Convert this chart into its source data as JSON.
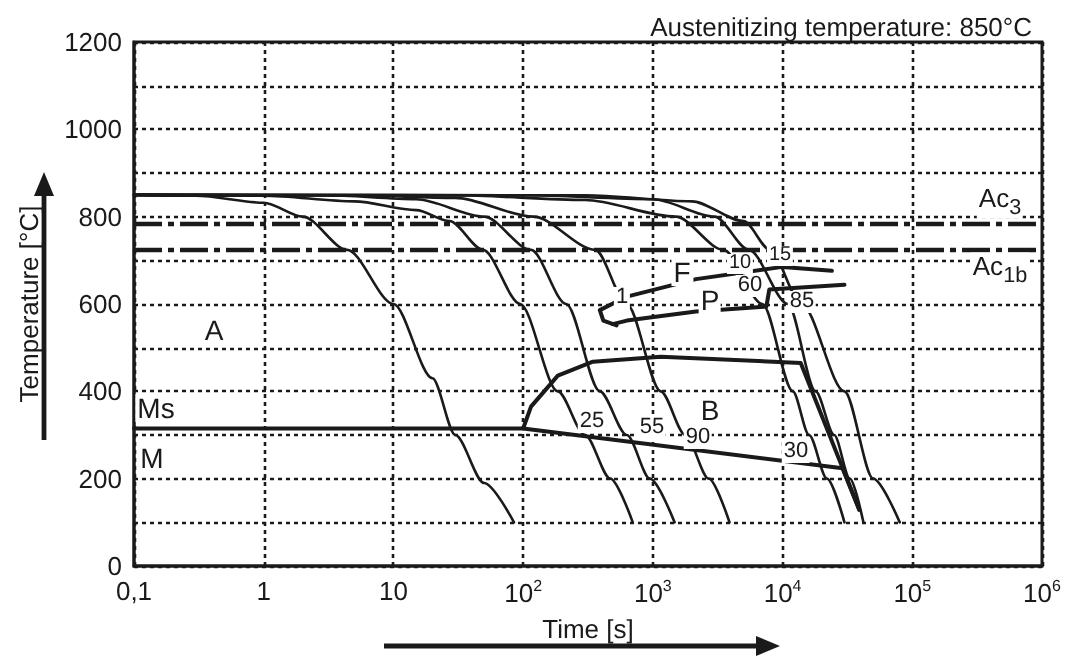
{
  "chart_data": {
    "type": "line",
    "title": "Austenitizing temperature: 850°C",
    "xlabel": "Time [s]",
    "ylabel": "Temperature [°C]",
    "log": "x",
    "grid": true,
    "marker": "none",
    "line_style": "solid",
    "xlim": [
      0.1,
      1000000
    ],
    "ylim": [
      0,
      1200
    ],
    "xticks": [
      {
        "value": 0.1,
        "label": "0,1"
      },
      1,
      10,
      {
        "value": 100,
        "label": "10$^{2}$"
      },
      {
        "value": 1000,
        "label": "10$^{3}$"
      },
      {
        "value": 10000,
        "label": "10$^{4}$"
      },
      {
        "value": 100000,
        "label": "10$^{5}$"
      },
      {
        "value": 1000000,
        "label": "10$^{6}$"
      }
    ],
    "yticks": [
      0,
      {
        "value": 100,
        "label": null
      },
      200,
      {
        "value": 300,
        "label": null
      },
      400,
      {
        "value": 500,
        "label": null
      },
      600,
      {
        "value": 700,
        "label": null
      },
      800,
      {
        "value": 900,
        "label": null
      },
      1000,
      {
        "value": 1100,
        "label": null
      },
      1200
    ],
    "ref_lines": [
      {
        "axis": "y",
        "value": 783,
        "label": "Ac$_{3}$",
        "color": "#1a1a1a",
        "line_style": "dashed"
      },
      {
        "axis": "y",
        "value": 725,
        "label": "Ac$_{1b}$",
        "color": "#1a1a1a",
        "line_style": "dashed"
      }
    ],
    "annotations": [
      "A",
      "Ms",
      "M",
      "F",
      "P",
      "B",
      "1",
      "10",
      "15",
      "60",
      "85",
      "25",
      "55",
      "90",
      "30"
    ],
    "series": [
      {
        "color": "#1a1a1a",
        "x": [
          0.1,
          0.3,
          1,
          2,
          4.4,
          10,
          20,
          30,
          50,
          85
        ],
        "values": [
          850,
          848,
          832,
          800,
          724,
          600,
          430,
          300,
          190,
          100
        ]
      },
      {
        "color": "#1a1a1a",
        "x": [
          0.1,
          1,
          5,
          15,
          27,
          49,
          95,
          185,
          300,
          470,
          700
        ],
        "values": [
          850,
          848,
          835,
          815,
          790,
          724,
          600,
          400,
          300,
          200,
          100
        ]
      },
      {
        "color": "#1a1a1a",
        "x": [
          0.1,
          3,
          15,
          50,
          115,
          215,
          390,
          630,
          950,
          1470
        ],
        "values": [
          850,
          849,
          840,
          800,
          724,
          600,
          400,
          300,
          200,
          100
        ]
      },
      {
        "color": "#1a1a1a",
        "x": [
          0.1,
          5,
          30,
          120,
          360,
          630,
          1150,
          1780,
          2700,
          3900
        ],
        "values": [
          850,
          849,
          843,
          800,
          724,
          600,
          400,
          300,
          200,
          100
        ]
      },
      {
        "color": "#1a1a1a",
        "x": [
          0.1,
          30,
          300,
          1500,
          3500,
          7000,
          12000,
          16000,
          22000,
          30000
        ],
        "values": [
          850,
          849,
          838,
          800,
          724,
          600,
          400,
          300,
          200,
          100
        ]
      },
      {
        "color": "#1a1a1a",
        "x": [
          0.1,
          100,
          1000,
          3000,
          5500,
          11000,
          18000,
          25000,
          33000,
          42000
        ],
        "values": [
          850,
          849,
          840,
          800,
          724,
          600,
          400,
          300,
          200,
          100
        ]
      },
      {
        "color": "#1a1a1a",
        "x": [
          0.1,
          300,
          2000,
          5000,
          8000,
          14000,
          30000,
          50000,
          80000
        ],
        "values": [
          850,
          849,
          835,
          790,
          724,
          600,
          400,
          200,
          100
        ]
      },
      {
        "color": "#1a1a1a",
        "x": [
          24000,
          10000,
          2150,
          630,
          390,
          415,
          525
        ],
        "values": [
          676,
          685,
          657,
          617,
          586,
          562,
          551
        ]
      },
      {
        "color": "#1a1a1a",
        "x": [
          30000,
          7900,
          7500,
          2150,
          630,
          490
        ],
        "values": [
          644,
          633,
          594,
          583,
          562,
          554
        ]
      },
      {
        "color": "#1a1a1a",
        "x": [
          100,
          115,
          185,
          345,
          1150,
          13800,
          39000
        ],
        "values": [
          315,
          365,
          436,
          468,
          479,
          465,
          129
        ]
      },
      {
        "color": "#1a1a1a",
        "x": [
          0.1,
          100,
          29000,
          39000
        ],
        "values": [
          315,
          315,
          224,
          129
        ]
      }
    ]
  }
}
